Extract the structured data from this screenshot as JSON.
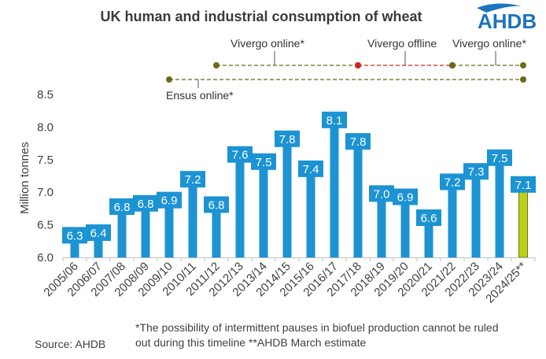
{
  "title": "UK human and industrial consumption of wheat",
  "logo": {
    "text": "AHDB",
    "color": "#1e73be"
  },
  "colors": {
    "bar": "#1c93d3",
    "estimate_bar": "#bccf1a",
    "estimate_outline": "#6b7a12",
    "label_box": "#1c93d3",
    "timeline_online": "#6b6b18",
    "timeline_offline": "#cc2727"
  },
  "timeline": {
    "vivergo": [
      {
        "label": "Vivergo online*",
        "state": "online",
        "start": "2011/12",
        "end": "2017/18"
      },
      {
        "label": "Vivergo offline",
        "state": "offline",
        "start": "2017/18",
        "end": "2021/22"
      },
      {
        "label": "Vivergo online*",
        "state": "online",
        "start": "2021/22",
        "end": "2024/25**"
      }
    ],
    "ensus": {
      "label": "Ensus online*",
      "state": "online",
      "start": "2009/10",
      "end": "2024/25**"
    }
  },
  "chart_data": {
    "type": "bar",
    "title": "UK human and industrial consumption of wheat",
    "xlabel": "",
    "ylabel": "Million tonnes",
    "ylim": [
      6.0,
      8.5
    ],
    "yticks": [
      "6.0",
      "6.5",
      "7.0",
      "7.5",
      "8.0",
      "8.5"
    ],
    "categories": [
      "2005/06",
      "2006/07",
      "2007/08",
      "2008/09",
      "2009/10",
      "2010/11",
      "2011/12",
      "2012/13",
      "2013/14",
      "2014/15",
      "2015/16",
      "2016/17",
      "2017/18",
      "2018/19",
      "2019/20",
      "2020/21",
      "2021/22",
      "2022/23",
      "2023/24",
      "2024/25**"
    ],
    "values": [
      6.34,
      6.38,
      6.78,
      6.83,
      6.88,
      7.2,
      6.81,
      7.58,
      7.47,
      7.82,
      7.36,
      8.11,
      7.78,
      6.98,
      6.93,
      6.61,
      7.16,
      7.32,
      7.53,
      7.12
    ],
    "labels": [
      "6.3",
      "6.4",
      "6.8",
      "6.8",
      "6.9",
      "7.2",
      "6.8",
      "7.6",
      "7.5",
      "7.8",
      "7.4",
      "8.1",
      "7.8",
      "7.0",
      "6.9",
      "6.6",
      "7.2",
      "7.3",
      "7.5",
      "7.1"
    ],
    "estimate_index": 19
  },
  "footnotes": {
    "source": "Source: AHDB",
    "note_line1": "*The possibility of intermittent pauses in biofuel production cannot be ruled",
    "note_line2": "out during this timeline    **AHDB March estimate"
  }
}
